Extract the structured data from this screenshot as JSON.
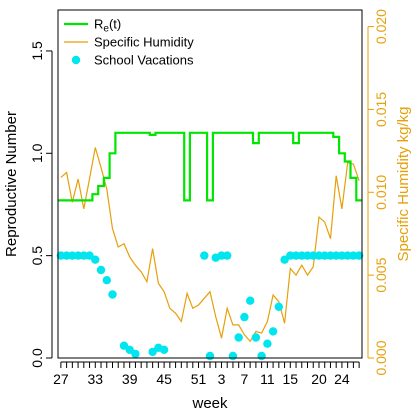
{
  "chart_data": {
    "type": "line",
    "xlabel": "week",
    "ylabel_left": "Reproductive Number",
    "ylabel_right": "Specific Humidity kg/kg",
    "ylim_left": [
      0,
      1.7
    ],
    "ylim_right": [
      0,
      0.021
    ],
    "x_ticks": [
      "27",
      "29",
      "31",
      "33",
      "35",
      "37",
      "39",
      "41",
      "43",
      "45",
      "47",
      "49",
      "51",
      "1",
      "3",
      "5",
      "7",
      "9",
      "11",
      "13",
      "15",
      "17",
      "19",
      "21",
      "23",
      "25"
    ],
    "x_tick_labels_shown": [
      "27",
      "33",
      "39",
      "45",
      "51",
      "3",
      "7",
      "11",
      "15",
      "20",
      "24"
    ],
    "y_ticks_left": [
      "0.0",
      "0.5",
      "1.0",
      "1.5"
    ],
    "y_ticks_right": [
      "0.000",
      "0.005",
      "0.010",
      "0.015",
      "0.020"
    ],
    "grid": false,
    "legend_position": "top-left",
    "colors": {
      "re": "#00e600",
      "humidity": "#e6a00a",
      "vacations": "#00e5ee",
      "axis": "#000000",
      "right_axis": "#e6a00a"
    },
    "series": [
      {
        "name": "Rₑ(t)",
        "axis": "left",
        "x": [
          1,
          2,
          3,
          4,
          5,
          6,
          7,
          8,
          9,
          10,
          11,
          12,
          13,
          14,
          15,
          16,
          17,
          18,
          19,
          20,
          21,
          22,
          23,
          24,
          25,
          26,
          27,
          28,
          29,
          30,
          31,
          32,
          33,
          34,
          35,
          36,
          37,
          38,
          39,
          40,
          41,
          42,
          43,
          44,
          45,
          46,
          47,
          48,
          49,
          50,
          51,
          52,
          53
        ],
        "values": [
          0.77,
          0.77,
          0.77,
          0.77,
          0.77,
          0.77,
          0.8,
          0.84,
          0.88,
          1.0,
          1.1,
          1.1,
          1.1,
          1.1,
          1.1,
          1.1,
          1.09,
          1.1,
          1.1,
          1.1,
          1.1,
          1.1,
          0.77,
          1.1,
          1.1,
          1.1,
          0.77,
          1.1,
          1.1,
          1.1,
          1.1,
          1.1,
          1.1,
          1.1,
          1.05,
          1.1,
          1.1,
          1.1,
          1.1,
          1.1,
          1.1,
          1.05,
          1.1,
          1.1,
          1.1,
          1.1,
          1.1,
          1.1,
          1.08,
          1.0,
          0.96,
          0.88,
          0.77
        ]
      },
      {
        "name": "Specific Humidity",
        "axis": "right",
        "x": [
          1,
          2,
          3,
          4,
          5,
          6,
          7,
          8,
          9,
          10,
          11,
          12,
          13,
          14,
          15,
          16,
          17,
          18,
          19,
          20,
          21,
          22,
          23,
          24,
          25,
          26,
          27,
          28,
          29,
          30,
          31,
          32,
          33,
          34,
          35,
          36,
          37,
          38,
          39,
          40,
          41,
          42,
          43,
          44,
          45,
          46,
          47,
          48,
          49,
          50,
          51,
          52,
          53
        ],
        "values": [
          0.0109,
          0.0112,
          0.0094,
          0.0108,
          0.009,
          0.0108,
          0.0127,
          0.0115,
          0.0102,
          0.0078,
          0.0067,
          0.0069,
          0.0061,
          0.0056,
          0.0052,
          0.0046,
          0.0066,
          0.0045,
          0.004,
          0.003,
          0.0027,
          0.0022,
          0.0039,
          0.003,
          0.0032,
          0.0036,
          0.004,
          0.0025,
          0.0012,
          0.003,
          0.002,
          0.002,
          0.0014,
          0.001,
          0.0016,
          0.0015,
          0.0022,
          0.0038,
          0.0034,
          0.0021,
          0.0054,
          0.005,
          0.0056,
          0.005,
          0.0055,
          0.0085,
          0.0082,
          0.0072,
          0.011,
          0.009,
          0.0118,
          0.0117,
          0.0107
        ]
      },
      {
        "name": "School Vacations",
        "axis": "left",
        "style": "points",
        "x": [
          1,
          2,
          3,
          4,
          5,
          6,
          7,
          8,
          9,
          10,
          12,
          13,
          14,
          17,
          18,
          19,
          26,
          27,
          28,
          29,
          30,
          31,
          32,
          33,
          34,
          35,
          36,
          37,
          38,
          39,
          40,
          41,
          42,
          43,
          44,
          45,
          46,
          47,
          48,
          49,
          50,
          51,
          52,
          53
        ],
        "values": [
          0.5,
          0.5,
          0.5,
          0.5,
          0.5,
          0.5,
          0.48,
          0.43,
          0.38,
          0.31,
          0.06,
          0.04,
          0.02,
          0.03,
          0.05,
          0.04,
          0.5,
          0.01,
          0.49,
          0.5,
          0.5,
          0.01,
          0.1,
          0.2,
          0.28,
          0.1,
          0.01,
          0.07,
          0.13,
          0.25,
          0.48,
          0.5,
          0.5,
          0.5,
          0.5,
          0.5,
          0.5,
          0.5,
          0.5,
          0.5,
          0.5,
          0.5,
          0.5,
          0.5
        ]
      }
    ]
  }
}
